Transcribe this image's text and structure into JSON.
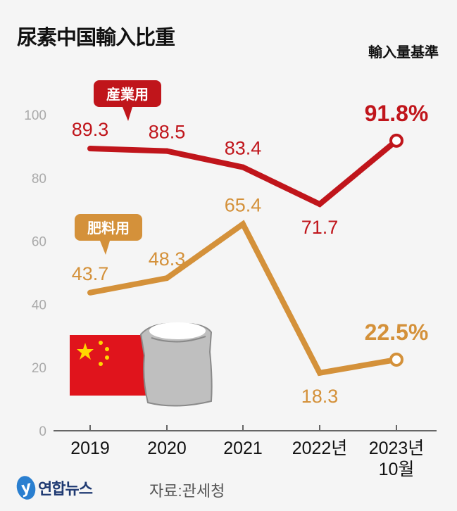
{
  "header": {
    "title": "尿素中国輸入比重",
    "basis": "輸入量基準"
  },
  "footer": {
    "logo_text": "연합뉴스",
    "source": "자료:관세청"
  },
  "colors": {
    "industrial": "#c0151b",
    "fertilizer": "#d4913a",
    "axis": "#666666",
    "tick_label": "#aaaaaa"
  },
  "chart_data": {
    "type": "line",
    "title": "尿素中国輸入比重",
    "subtitle": "輸入量基準",
    "categories": [
      "2019",
      "2020",
      "2021",
      "2022년",
      "2023년 10월"
    ],
    "category_lines": [
      [
        "2019"
      ],
      [
        "2020"
      ],
      [
        "2021"
      ],
      [
        "2022년"
      ],
      [
        "2023년",
        "10월"
      ]
    ],
    "ylim": [
      0,
      100
    ],
    "yticks": [
      "0",
      "20",
      "40",
      "60",
      "80",
      "100"
    ],
    "ytick_values": [
      0,
      20,
      40,
      60,
      80,
      100
    ],
    "grid": false,
    "series": [
      {
        "name": "産業用",
        "values": [
          89.3,
          88.5,
          83.4,
          71.7,
          91.8
        ],
        "labels": [
          "89.3",
          "88.5",
          "83.4",
          "71.7",
          "91.8%"
        ]
      },
      {
        "name": "肥料用",
        "values": [
          43.7,
          48.3,
          65.4,
          18.3,
          22.5
        ],
        "labels": [
          "43.7",
          "48.3",
          "65.4",
          "18.3",
          "22.5%"
        ]
      }
    ]
  }
}
